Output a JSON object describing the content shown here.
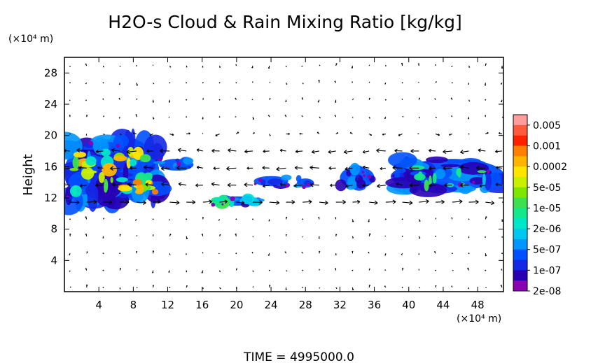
{
  "chart_data": {
    "type": "heatmap",
    "title": "H2O-s Cloud & Rain Mixing Ratio [kg/kg]",
    "ylabel": "Height",
    "x_unit": "(×10⁴ m)",
    "y_unit": "(×10⁴ m)",
    "xlim": [
      0,
      51
    ],
    "ylim": [
      0,
      30
    ],
    "xticks": [
      "4",
      "8",
      "12",
      "16",
      "20",
      "24",
      "28",
      "32",
      "36",
      "40",
      "44",
      "48"
    ],
    "yticks": [
      "4",
      "8",
      "12",
      "16",
      "20",
      "24",
      "28"
    ],
    "colorbar": {
      "labels": [
        "0.005",
        "0.001",
        "0.0002",
        "5e-05",
        "1e-05",
        "2e-06",
        "5e-07",
        "1e-07",
        "2e-08"
      ],
      "colors": [
        "#ff9c9c",
        "#ff5a3c",
        "#ff2000",
        "#ff7f00",
        "#ffb400",
        "#ffe600",
        "#c8f000",
        "#7ee600",
        "#3ee050",
        "#14e88c",
        "#00e6c8",
        "#00c8f0",
        "#0096ff",
        "#0050ff",
        "#1428e6",
        "#2800b4",
        "#8c00b4"
      ]
    },
    "wind_vectors": "black arrows on grid",
    "regions": [
      {
        "x": [
          0,
          11
        ],
        "y": [
          11.5,
          19.5
        ],
        "level": "2e-06 to 5e-05"
      },
      {
        "x": [
          11,
          15
        ],
        "y": [
          15.5,
          17
        ],
        "level": "1e-07"
      },
      {
        "x": [
          17,
          23
        ],
        "y": [
          11,
          12.2
        ],
        "level": "1e-06"
      },
      {
        "x": [
          22,
          26
        ],
        "y": [
          13.5,
          14.8
        ],
        "level": "1e-07"
      },
      {
        "x": [
          27,
          29
        ],
        "y": [
          13.3,
          14.5
        ],
        "level": "1e-07"
      },
      {
        "x": [
          32,
          36
        ],
        "y": [
          13.2,
          16
        ],
        "level": "1e-07"
      },
      {
        "x": [
          39,
          51
        ],
        "y": [
          13,
          17
        ],
        "level": "1e-07"
      }
    ]
  },
  "footer": {
    "time_label": "TIME = 4995000.0"
  }
}
